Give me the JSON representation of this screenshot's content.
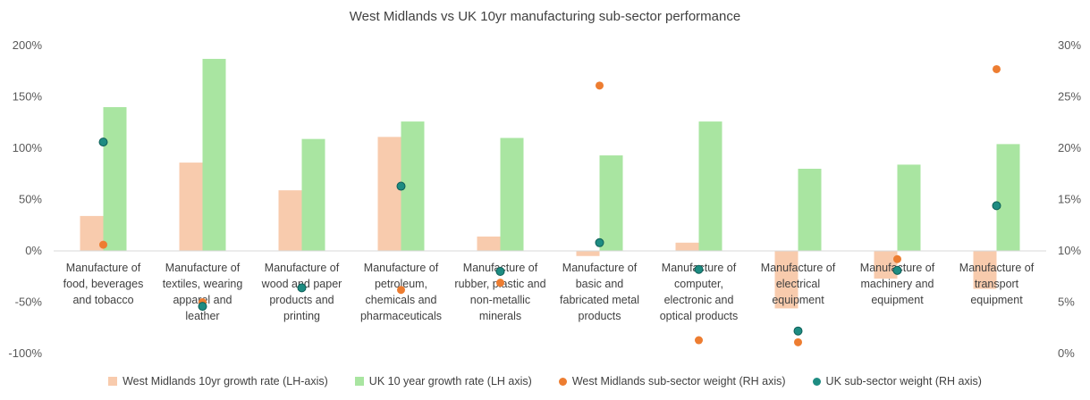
{
  "chart_data": {
    "type": "bar",
    "title": "West Midlands vs UK 10yr manufacturing sub-sector performance",
    "categories": [
      [
        "Manufacture of",
        "food, beverages",
        "and tobacco"
      ],
      [
        "Manufacture of",
        "textiles, wearing",
        "apparel and",
        "leather"
      ],
      [
        "Manufacture of",
        "wood and paper",
        "products and",
        "printing"
      ],
      [
        "Manufacture of",
        "petroleum,",
        "chemicals and",
        "pharmaceuticals"
      ],
      [
        "Manufacture of",
        "rubber, plastic and",
        "non-metallic",
        "minerals"
      ],
      [
        "Manufacture of",
        "basic and",
        "fabricated metal",
        "products"
      ],
      [
        "Manufacture of",
        "computer,",
        "electronic and",
        "optical products"
      ],
      [
        "Manufacture of",
        "electrical",
        "equipment"
      ],
      [
        "Manufacture of",
        "machinery and",
        "equipment"
      ],
      [
        "Manufacture of",
        "transport",
        "equipment"
      ]
    ],
    "left_axis": {
      "ylim": [
        -100,
        200
      ],
      "ticks": [
        "-100%",
        "-50%",
        "0%",
        "50%",
        "100%",
        "150%",
        "200%"
      ]
    },
    "right_axis": {
      "ylim": [
        0,
        30
      ],
      "ticks": [
        "0%",
        "5%",
        "10%",
        "15%",
        "20%",
        "25%",
        "30%"
      ]
    },
    "series": [
      {
        "name": "West Midlands 10yr growth rate (LH-axis)",
        "axis": "left",
        "kind": "bar",
        "color": "#F8CBAD",
        "values": [
          34,
          86,
          59,
          111,
          14,
          -5,
          8,
          -56,
          -27,
          -37
        ]
      },
      {
        "name": "UK 10 year growth rate (LH axis)",
        "axis": "left",
        "kind": "bar",
        "color": "#A9E5A1",
        "values": [
          140,
          187,
          109,
          126,
          110,
          93,
          126,
          80,
          84,
          104
        ]
      },
      {
        "name": "West Midlands sub-sector weight (RH axis)",
        "axis": "right",
        "kind": "dot",
        "color": "#ED7D31",
        "values": [
          10.6,
          5.0,
          6.4,
          6.2,
          6.9,
          26.1,
          1.3,
          1.1,
          9.2,
          27.7
        ]
      },
      {
        "name": "UK sub-sector weight (RH axis)",
        "axis": "right",
        "kind": "dot",
        "color": "#1E8C82",
        "values": [
          20.6,
          4.6,
          6.4,
          16.3,
          8.0,
          10.8,
          8.2,
          2.2,
          8.1,
          14.4
        ]
      }
    ],
    "grid": false,
    "legend_position": "bottom"
  }
}
